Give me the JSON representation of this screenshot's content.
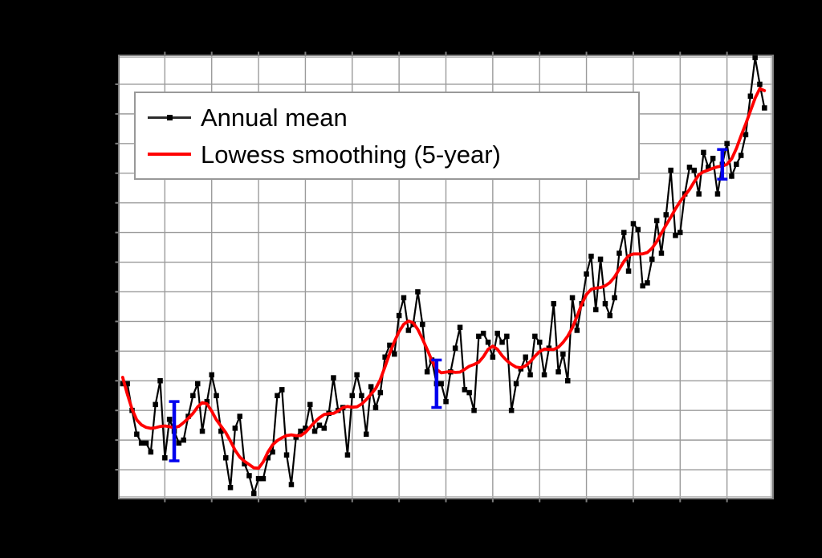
{
  "colors": {
    "background": "#000000",
    "plot_background": "#ffffff",
    "gridline": "#9b9b9b",
    "frame": "#7f7f7f",
    "frame_inner": "#b3b3b3",
    "annual_line": "#000000",
    "lowess_line": "#ff0000",
    "error_bar": "#0000ee",
    "legend_border": "#999999",
    "legend_text": "#000000"
  },
  "legend": {
    "items": [
      {
        "label": "Annual mean",
        "swatch": "black-line-with-square-marker"
      },
      {
        "label": "Lowess smoothing (5-year)",
        "swatch": "red-line"
      }
    ]
  },
  "chart_data": {
    "type": "line",
    "xlim": [
      1880,
      2020
    ],
    "ylim": [
      -0.5,
      1.0
    ],
    "x_grid_step": 10,
    "y_grid_step": 0.1,
    "grid": true,
    "legend_position": "upper-left",
    "start_year": 1881,
    "end_year": 2018,
    "series": [
      {
        "name": "Annual mean",
        "style": "black line with square markers",
        "values": [
          -0.11,
          -0.11,
          -0.2,
          -0.28,
          -0.31,
          -0.31,
          -0.34,
          -0.18,
          -0.1,
          -0.36,
          -0.23,
          -0.27,
          -0.31,
          -0.3,
          -0.22,
          -0.15,
          -0.11,
          -0.27,
          -0.17,
          -0.08,
          -0.15,
          -0.27,
          -0.36,
          -0.46,
          -0.26,
          -0.22,
          -0.38,
          -0.42,
          -0.48,
          -0.43,
          -0.43,
          -0.36,
          -0.34,
          -0.15,
          -0.13,
          -0.35,
          -0.45,
          -0.29,
          -0.27,
          -0.26,
          -0.18,
          -0.27,
          -0.25,
          -0.26,
          -0.21,
          -0.09,
          -0.2,
          -0.19,
          -0.35,
          -0.15,
          -0.08,
          -0.15,
          -0.28,
          -0.12,
          -0.19,
          -0.14,
          -0.02,
          0.02,
          -0.01,
          0.12,
          0.18,
          0.07,
          0.09,
          0.2,
          0.09,
          -0.07,
          -0.03,
          -0.11,
          -0.11,
          -0.17,
          -0.07,
          0.01,
          0.08,
          -0.13,
          -0.14,
          -0.2,
          0.05,
          0.06,
          0.03,
          -0.02,
          0.06,
          0.03,
          0.05,
          -0.2,
          -0.11,
          -0.06,
          -0.02,
          -0.08,
          0.05,
          0.03,
          -0.08,
          0.01,
          0.16,
          -0.07,
          -0.01,
          -0.1,
          0.18,
          0.07,
          0.16,
          0.26,
          0.32,
          0.14,
          0.31,
          0.16,
          0.12,
          0.18,
          0.33,
          0.4,
          0.27,
          0.43,
          0.41,
          0.22,
          0.23,
          0.31,
          0.44,
          0.33,
          0.46,
          0.61,
          0.39,
          0.4,
          0.53,
          0.62,
          0.61,
          0.53,
          0.67,
          0.62,
          0.65,
          0.53,
          0.63,
          0.7,
          0.59,
          0.63,
          0.66,
          0.73,
          0.86,
          0.99,
          0.9,
          0.82
        ]
      },
      {
        "name": "Lowess smoothing (5-year)",
        "style": "red smooth curve",
        "derived": "lowess(5-year) of Annual mean"
      }
    ],
    "error_bars": [
      {
        "year": 1892,
        "value": -0.27,
        "plus_minus": 0.1
      },
      {
        "year": 1948,
        "value": -0.11,
        "plus_minus": 0.08
      },
      {
        "year": 2009,
        "value": 0.63,
        "plus_minus": 0.05
      }
    ]
  }
}
